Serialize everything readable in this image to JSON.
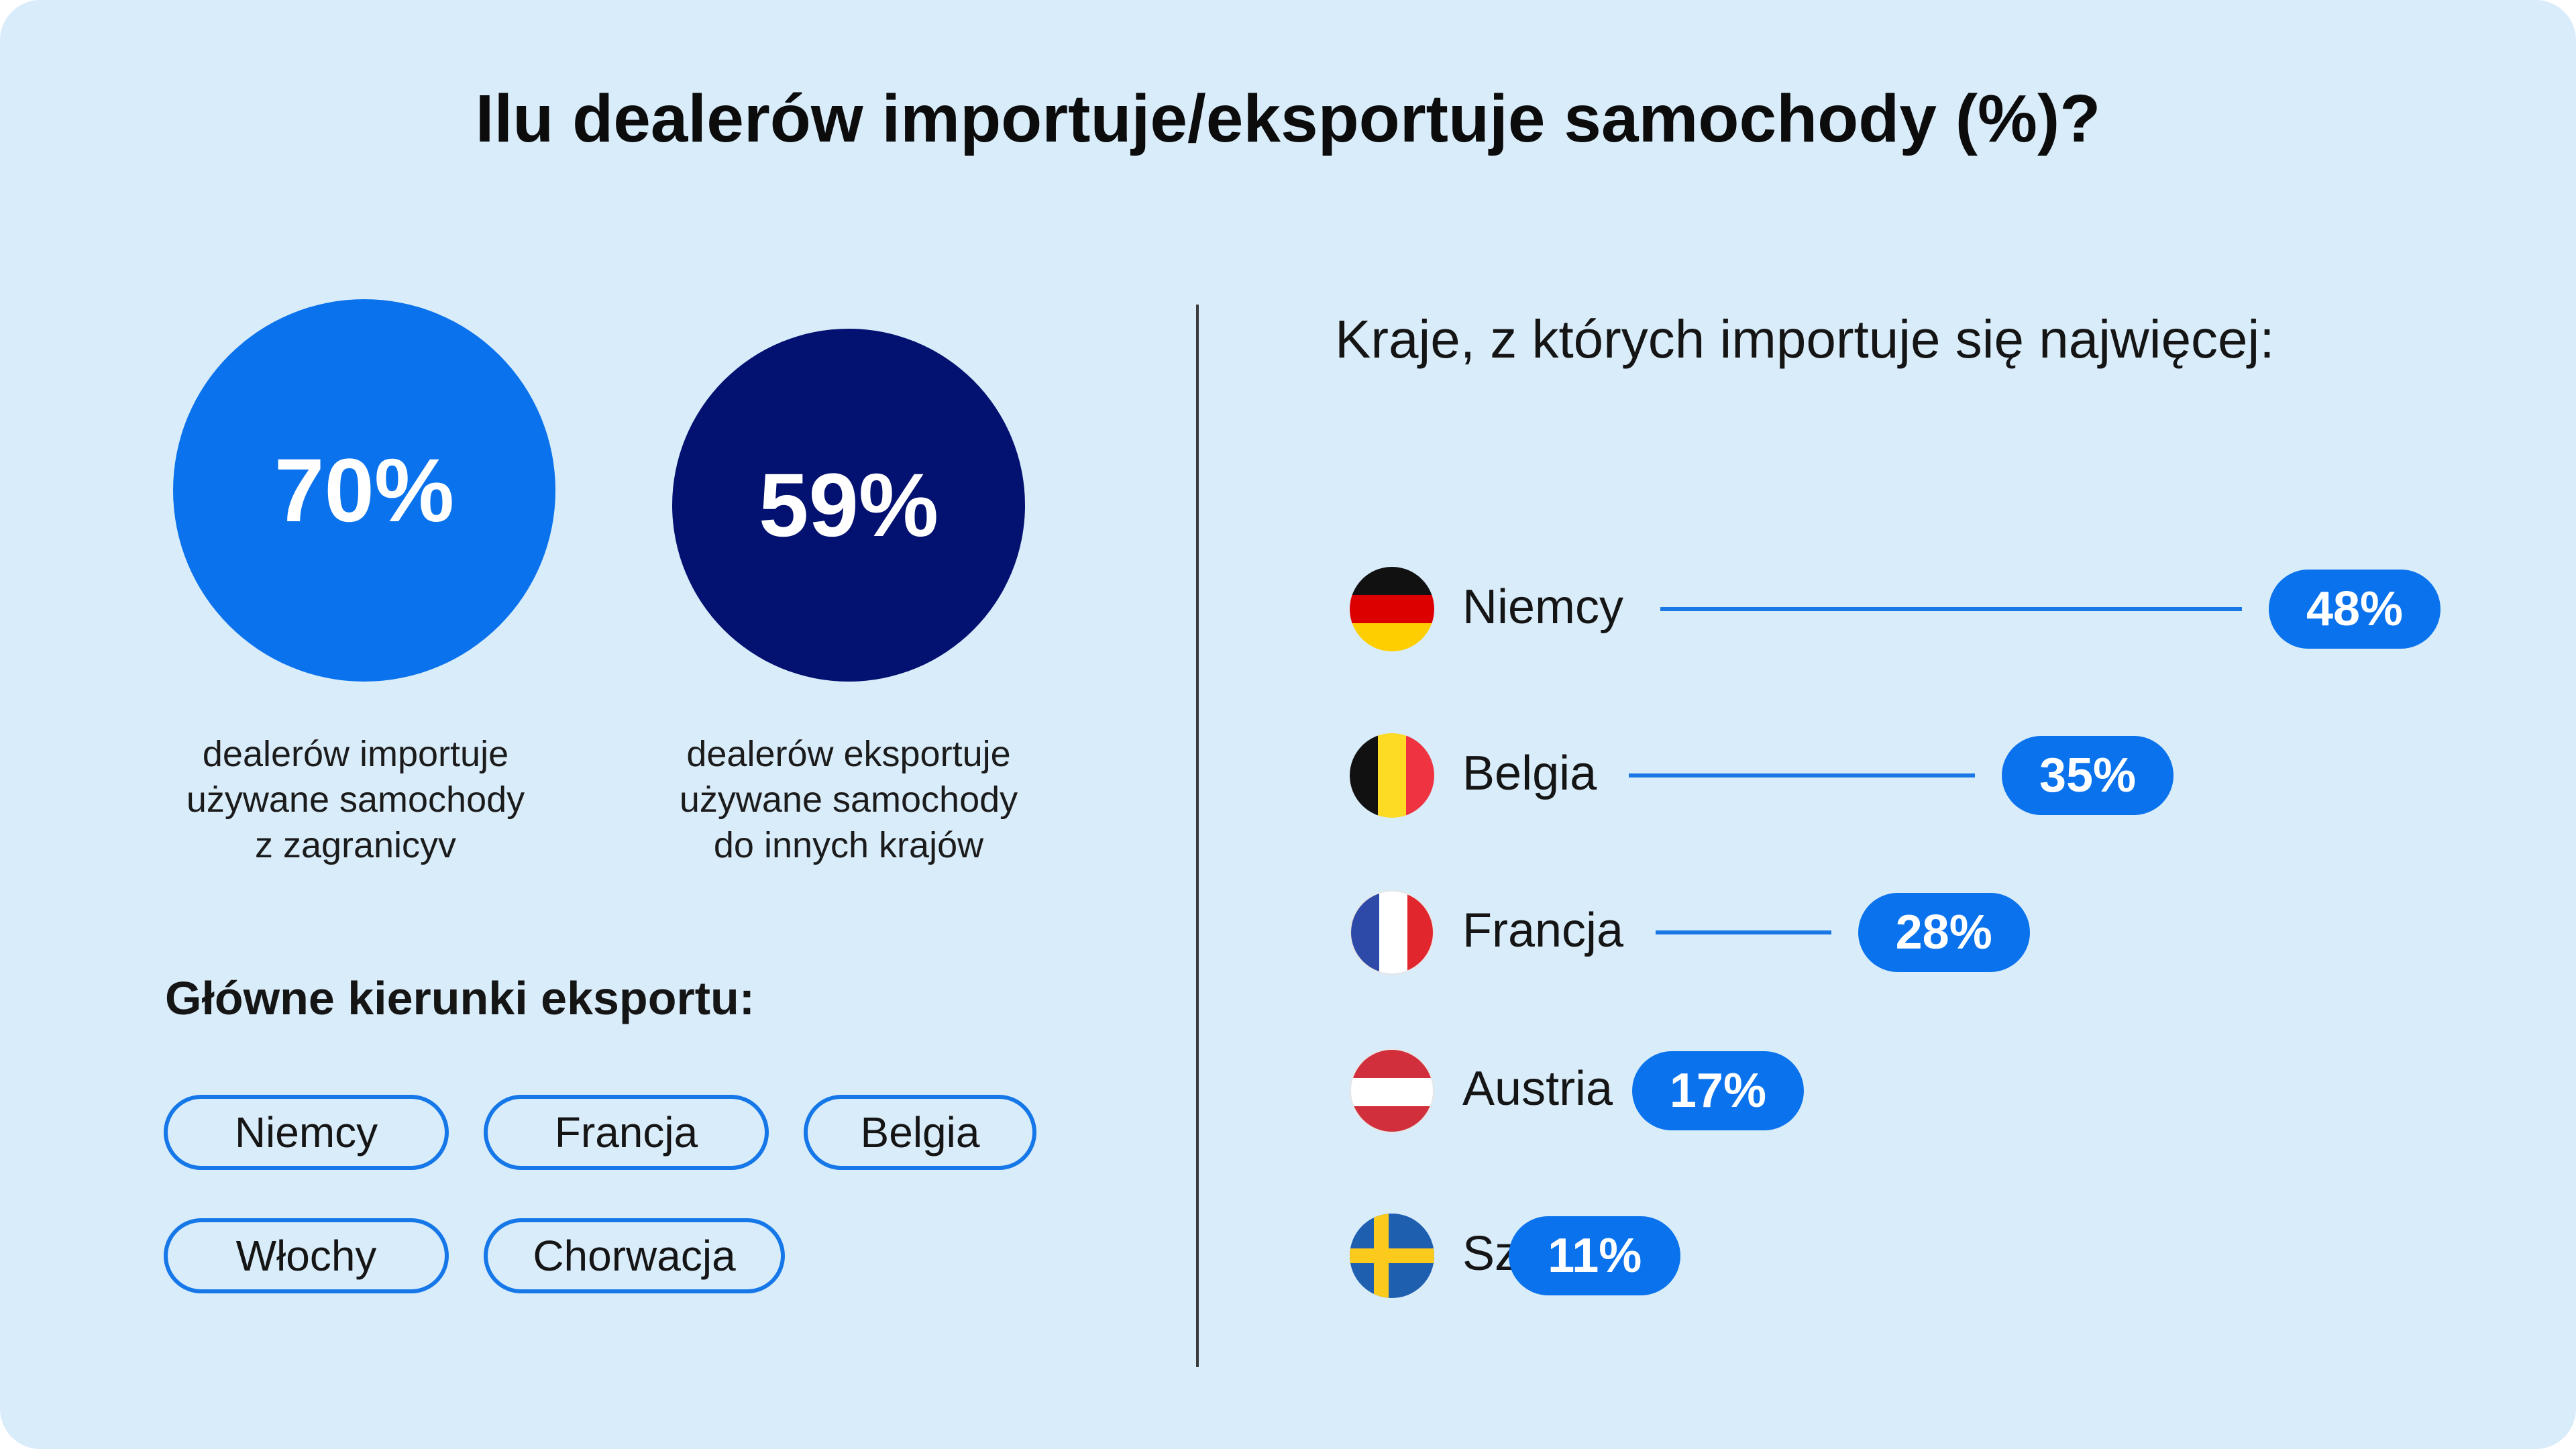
{
  "title": "Ilu dealerów importuje/eksportuje samochody (%)?",
  "import_stat": {
    "value": "70%",
    "caption": [
      "dealerów importuje",
      "używane samochody",
      "z zagranicyv"
    ],
    "color": "#0a72ec"
  },
  "export_stat": {
    "value": "59%",
    "caption": [
      "dealerów eksportuje",
      "używane samochody",
      "do innych krajów"
    ],
    "color": "#031170"
  },
  "export_directions": {
    "heading": "Główne kierunki eksportu:",
    "items": [
      "Niemcy",
      "Francja",
      "Belgia",
      "Włochy",
      "Chorwacja"
    ]
  },
  "chart_data": {
    "type": "bar",
    "title": "Kraje, z których importuje się najwięcej:",
    "categories": [
      "Niemcy",
      "Belgia",
      "Francja",
      "Austria",
      "Szwecja"
    ],
    "values": [
      48,
      35,
      28,
      17,
      11
    ],
    "value_labels": [
      "48%",
      "35%",
      "28%",
      "17%",
      "11%"
    ],
    "flags": [
      "germany-flag-icon",
      "belgium-flag-icon",
      "france-flag-icon",
      "austria-flag-icon",
      "sweden-flag-icon"
    ],
    "unit": "%",
    "bar_color": "#0a72ec"
  }
}
